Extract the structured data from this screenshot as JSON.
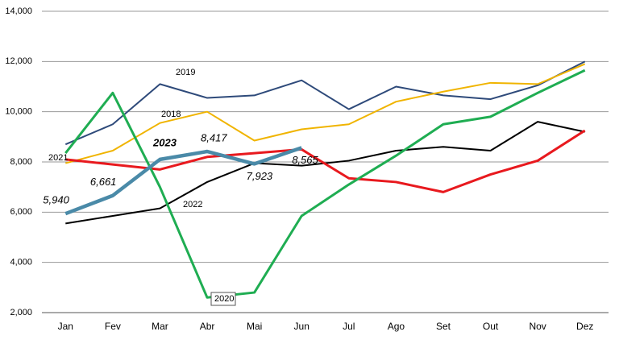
{
  "chart_data": {
    "type": "line",
    "categories": [
      "Jan",
      "Fev",
      "Mar",
      "Abr",
      "Mai",
      "Jun",
      "Jul",
      "Ago",
      "Set",
      "Out",
      "Nov",
      "Dez"
    ],
    "ylim": [
      2000,
      14000
    ],
    "yticks": [
      {
        "value": 2000,
        "label": "2,000"
      },
      {
        "value": 4000,
        "label": "4,000"
      },
      {
        "value": 6000,
        "label": "6,000"
      },
      {
        "value": 8000,
        "label": "8,000"
      },
      {
        "value": 10000,
        "label": "10,000"
      },
      {
        "value": 12000,
        "label": "12,000"
      },
      {
        "value": 14000,
        "label": "14,000"
      }
    ],
    "grid": true,
    "series": [
      {
        "name": "2019",
        "color": "#2e4a7a",
        "values": [
          8700,
          9500,
          11100,
          10550,
          10650,
          11250,
          10100,
          11000,
          10650,
          10500,
          11050,
          12000
        ]
      },
      {
        "name": "2018",
        "color": "#f0b400",
        "values": [
          7950,
          8450,
          9550,
          10000,
          8850,
          9300,
          9500,
          10400,
          10800,
          11150,
          11100,
          11900
        ]
      },
      {
        "name": "2022",
        "color": "#000000",
        "values": [
          5550,
          5850,
          6150,
          7200,
          7950,
          7850,
          8050,
          8450,
          8600,
          8450,
          9600,
          9200
        ]
      },
      {
        "name": "2021",
        "color": "#e8191e",
        "values": [
          8100,
          7900,
          7700,
          8200,
          8350,
          8500,
          7350,
          7200,
          6800,
          7500,
          8050,
          9250
        ]
      },
      {
        "name": "2020",
        "color": "#1fad52",
        "values": [
          8350,
          10750,
          7000,
          2600,
          2800,
          5850,
          7100,
          8250,
          9500,
          9800,
          10750,
          11650
        ]
      },
      {
        "name": "2023",
        "color": "#4a8aa8",
        "values": [
          5940,
          6661,
          8100,
          8417,
          7923,
          8565,
          null,
          null,
          null,
          null,
          null,
          null
        ],
        "value_labels": [
          "5,940",
          "6,661",
          null,
          "8,417",
          "7,923",
          "8,565",
          null,
          null,
          null,
          null,
          null,
          null
        ]
      }
    ]
  }
}
